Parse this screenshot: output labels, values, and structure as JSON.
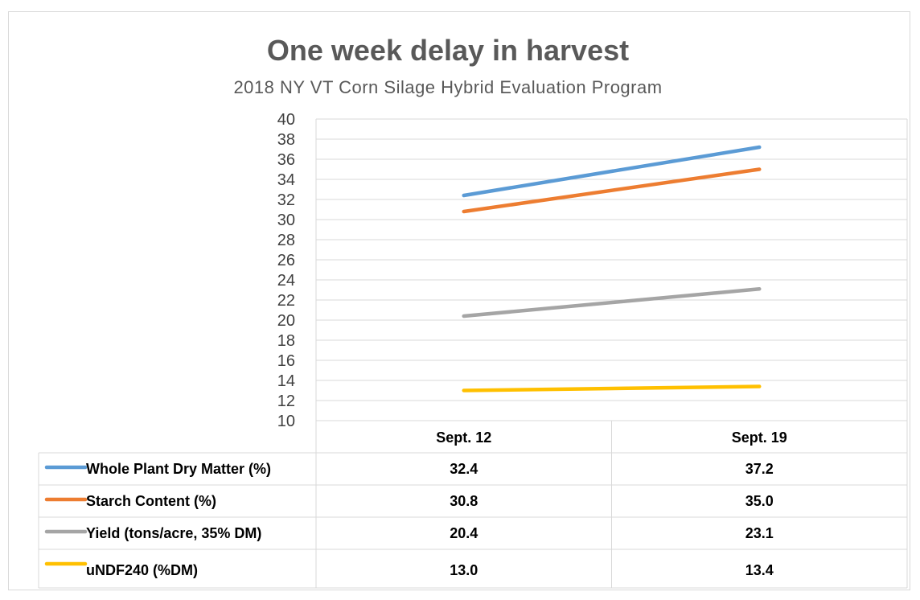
{
  "chart_data": {
    "type": "line",
    "title": "One week delay in harvest",
    "subtitle": "2018 NY VT Corn Silage Hybrid Evaluation Program",
    "categories": [
      "Sept. 12",
      "Sept. 19"
    ],
    "ylim": [
      10,
      40
    ],
    "ytick_step": 2,
    "yticks": [
      "10",
      "12",
      "14",
      "16",
      "18",
      "20",
      "22",
      "24",
      "26",
      "28",
      "30",
      "32",
      "34",
      "36",
      "38",
      "40"
    ],
    "grid": true,
    "legend_placement": "data-table-left",
    "series": [
      {
        "name": "Whole Plant Dry Matter (%)",
        "color": "#5b9bd5",
        "values": [
          32.4,
          37.2
        ],
        "labels": [
          "32.4",
          "37.2"
        ]
      },
      {
        "name": "Starch Content  (%)",
        "color": "#ed7d31",
        "values": [
          30.8,
          35.0
        ],
        "labels": [
          "30.8",
          "35.0"
        ]
      },
      {
        "name": "Yield (tons/acre, 35% DM)",
        "color": "#a5a5a5",
        "values": [
          20.4,
          23.1
        ],
        "labels": [
          "20.4",
          "23.1"
        ]
      },
      {
        "name": "uNDF240 (%DM)",
        "color": "#ffc000",
        "values": [
          13.0,
          13.4
        ],
        "labels": [
          "13.0",
          "13.4"
        ]
      }
    ]
  }
}
